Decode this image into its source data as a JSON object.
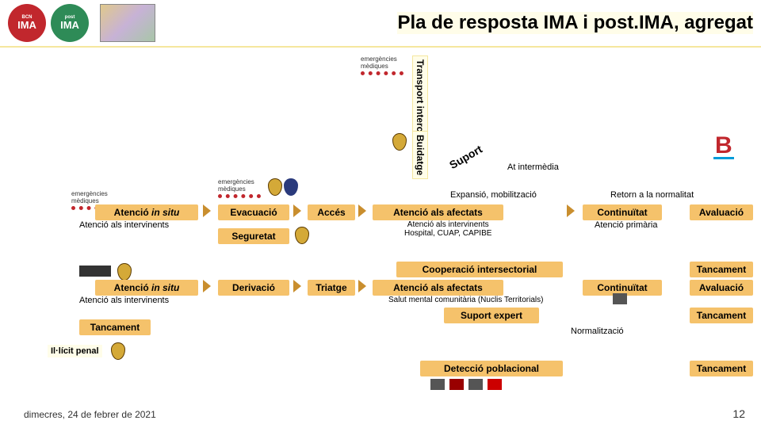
{
  "header": {
    "logo1_top": "BCN",
    "logo1_main": "IMA",
    "logo1_sub": "Incident amb Múltiples Afectats",
    "logo2_top": "post",
    "logo2_main": "IMA",
    "logo2_sub": "Incident amb Múltiples Afectats",
    "title": "Pla de resposta IMA i post.IMA, agregat"
  },
  "vertical": {
    "transport": "Transport intercentres",
    "buidatge": "Buidatge"
  },
  "diag": {
    "suport": "Suport"
  },
  "labels": {
    "emerg": "emergències mèdiques",
    "at_intermedia": "At intermèdia",
    "expansio": "Expansió, mobilització",
    "retorn": "Retorn a la normalitat",
    "atencio_intervinents": "Atenció als intervinents",
    "atencio_intervinents2": "Atenció als intervinents\nHospital, CUAP, CAPIBE",
    "atencio_primaria": "Atenció primària",
    "salut_mental": "Salut mental comunitària (Nuclis Territorials)",
    "suport_expert": "Suport expert",
    "normalitzacio": "Normalització",
    "illicit": "Il·lícit penal"
  },
  "pills": {
    "atencio_situ": "Atenció in situ",
    "evacuacio": "Evacuació",
    "acces": "Accés",
    "atencio_afectats": "Atenció als afectats",
    "continuitat": "Continuïtat",
    "avaluacio": "Avaluació",
    "seguretat": "Seguretat",
    "cooperacio": "Cooperació intersectorial",
    "tancament": "Tancament",
    "derivacio": "Derivació",
    "triatge": "Triatge",
    "deteccio": "Detecció poblacional"
  },
  "footer": {
    "date": "dimecres, 24 de febrer de 2021",
    "page": "12"
  },
  "colors": {
    "pill": "#f5c26b",
    "highlight": "#fffde9",
    "red": "#c1272d",
    "green": "#2e8b57"
  }
}
